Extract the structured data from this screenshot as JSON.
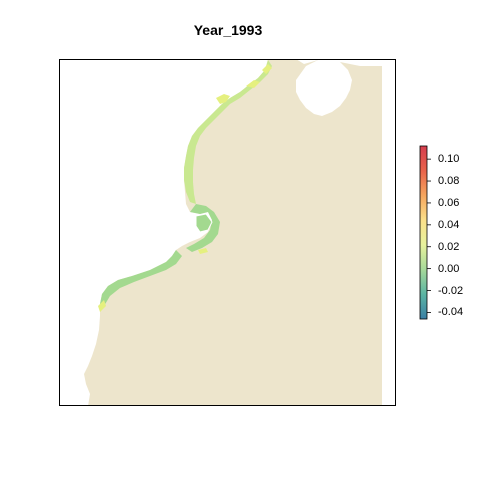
{
  "title": "Year_1993",
  "colors": {
    "background": "#ffffff",
    "ocean": "#ede5cc",
    "frame": "#000000",
    "land": "#ffffff",
    "coast_low": "#a3d98f",
    "coast_mid": "#c9e890",
    "coast_high": "#e5f07f"
  },
  "legend": {
    "labels": [
      "0.10",
      "0.08",
      "0.06",
      "0.04",
      "0.02",
      "0.00",
      "-0.02",
      "-0.04"
    ],
    "values": [
      0.1,
      0.08,
      0.06,
      0.04,
      0.02,
      0.0,
      -0.02,
      -0.04
    ],
    "range": [
      -0.046,
      0.112
    ],
    "color_stops": [
      "#3a7fa5",
      "#5bb5a3",
      "#a6d99a",
      "#e7f29c",
      "#fbe08a",
      "#f6a65e",
      "#e9634b",
      "#d53e4f"
    ]
  }
}
